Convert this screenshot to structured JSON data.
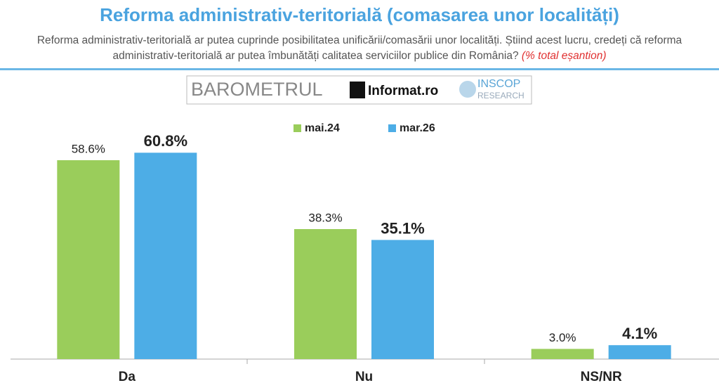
{
  "title": "Reforma administrativ-teritorială (comasarea unor localități)",
  "subtitle": "Reforma administrativ-teritorială ar putea cuprinde posibilitatea unificării/comasării unor localități. Știind acest lucru, credeți că reforma administrativ-teritorială ar putea îmbunătăți calitatea serviciilor publice din România?",
  "subtitle_note": "(% total eșantion)",
  "logo": {
    "barometer": "BAROMETRUL",
    "partner": "Informat.ro",
    "brand": "INSCOP",
    "brand_sub": "RESEARCH"
  },
  "chart_data": {
    "type": "bar",
    "categories": [
      "Da",
      "Nu",
      "NS/NR"
    ],
    "series": [
      {
        "name": "mai.24",
        "color": "#9acd5b",
        "values": [
          58.6,
          38.3,
          3.0
        ],
        "value_labels": [
          "58.6%",
          "38.3%",
          "3.0%"
        ]
      },
      {
        "name": "mar.26",
        "color": "#4dade6",
        "values": [
          60.8,
          35.1,
          4.1
        ],
        "value_labels": [
          "60.8%",
          "35.1%",
          "4.1%"
        ]
      }
    ],
    "ylim": [
      0,
      100
    ]
  }
}
